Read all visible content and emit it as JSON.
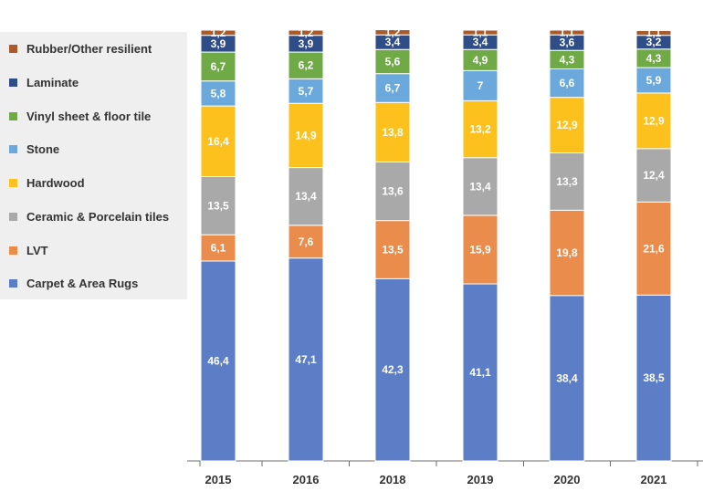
{
  "chart_data": {
    "type": "bar",
    "stacked": true,
    "categories": [
      "2015",
      "2016",
      "2018",
      "2019",
      "2020",
      "2021"
    ],
    "series": [
      {
        "name": "Carpet & Area Rugs",
        "color": "#5b7ec6",
        "values": [
          46.4,
          47.1,
          42.3,
          41.1,
          38.4,
          38.5
        ],
        "labels": [
          "46,4",
          "47,1",
          "42,3",
          "41,1",
          "38,4",
          "38,5"
        ]
      },
      {
        "name": "LVT",
        "color": "#ea8c4c",
        "values": [
          6.1,
          7.6,
          13.5,
          15.9,
          19.8,
          21.6
        ],
        "labels": [
          "6,1",
          "7,6",
          "13,5",
          "15,9",
          "19,8",
          "21,6"
        ]
      },
      {
        "name": "Ceramic & Porcelain tiles",
        "color": "#a9a9a9",
        "values": [
          13.5,
          13.4,
          13.6,
          13.4,
          13.3,
          12.4
        ],
        "labels": [
          "13,5",
          "13,4",
          "13,6",
          "13,4",
          "13,3",
          "12,4"
        ]
      },
      {
        "name": "Hardwood",
        "color": "#fcc11d",
        "values": [
          16.4,
          14.9,
          13.8,
          13.2,
          12.9,
          12.9
        ],
        "labels": [
          "16,4",
          "14,9",
          "13,8",
          "13,2",
          "12,9",
          "12,9"
        ]
      },
      {
        "name": "Stone",
        "color": "#6ba8dc",
        "values": [
          5.8,
          5.7,
          6.7,
          7,
          6.6,
          5.9
        ],
        "labels": [
          "5,8",
          "5,7",
          "6,7",
          "7",
          "6,6",
          "5,9"
        ]
      },
      {
        "name": "Vinyl sheet & floor tile",
        "color": "#6faa46",
        "values": [
          6.7,
          6.2,
          5.6,
          4.9,
          4.3,
          4.3
        ],
        "labels": [
          "6,7",
          "6,2",
          "5,6",
          "4,9",
          "4,3",
          "4,3"
        ]
      },
      {
        "name": "Laminate",
        "color": "#2f4d86",
        "values": [
          3.9,
          3.9,
          3.4,
          3.4,
          3.6,
          3.2
        ],
        "labels": [
          "3,9",
          "3,9",
          "3,4",
          "3,4",
          "3,6",
          "3,2"
        ]
      },
      {
        "name": "Rubber/Other resilient",
        "color": "#a95b2c",
        "values": [
          1.2,
          1.2,
          1.2,
          1.1,
          1.1,
          1.1
        ],
        "labels": [
          "1,2",
          "1,2",
          "1,2",
          "1,1",
          "1,1",
          "1,1"
        ]
      }
    ],
    "legend": {
      "position": "left",
      "order": [
        "Rubber/Other resilient",
        "Laminate",
        "Vinyl sheet & floor tile",
        "Stone",
        "Hardwood",
        "Ceramic & Porcelain tiles",
        "LVT",
        "Carpet & Area Rugs"
      ]
    },
    "ylim": [
      0,
      100
    ],
    "grid": false,
    "title": "",
    "xlabel": "",
    "ylabel": ""
  }
}
